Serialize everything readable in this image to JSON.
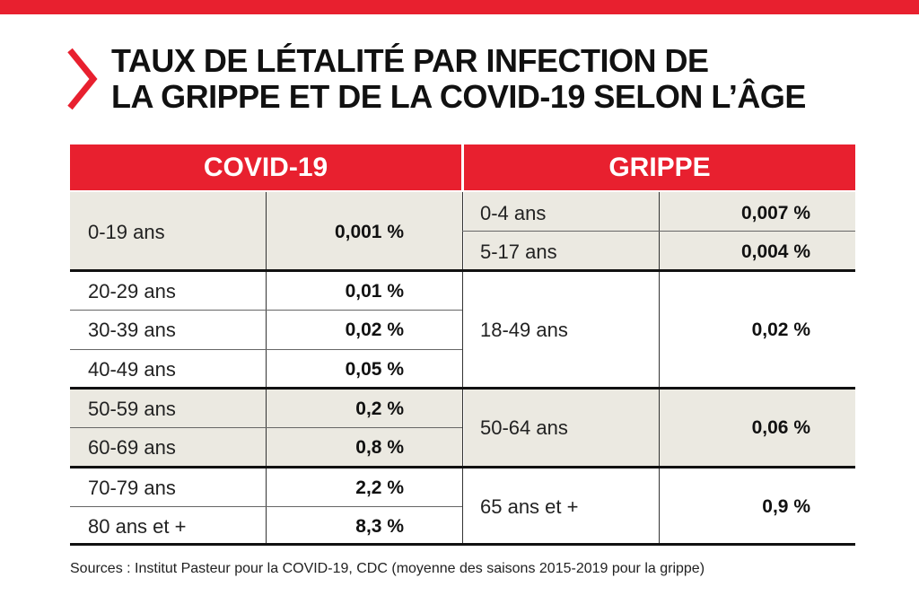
{
  "title_line1": "TAUX DE LÉTALITÉ PAR INFECTION DE",
  "title_line2": "LA GRIPPE ET DE LA COVID-19 SELON L’ÂGE",
  "covid": {
    "header": "COVID-19",
    "rows": [
      {
        "age": "0-19 ans",
        "rate": "0,001 %"
      },
      {
        "age": "20-29 ans",
        "rate": "0,01 %"
      },
      {
        "age": "30-39 ans",
        "rate": "0,02 %"
      },
      {
        "age": "40-49 ans",
        "rate": "0,05 %"
      },
      {
        "age": "50-59 ans",
        "rate": "0,2 %"
      },
      {
        "age": "60-69 ans",
        "rate": "0,8 %"
      },
      {
        "age": "70-79 ans",
        "rate": "2,2 %"
      },
      {
        "age": "80 ans et +",
        "rate": "8,3 %"
      }
    ]
  },
  "grippe": {
    "header": "GRIPPE",
    "rows": [
      {
        "age": "0-4 ans",
        "rate": "0,007 %"
      },
      {
        "age": "5-17 ans",
        "rate": "0,004 %"
      },
      {
        "age": "18-49 ans",
        "rate": "0,02 %"
      },
      {
        "age": "50-64 ans",
        "rate": "0,06 %"
      },
      {
        "age": "65 ans et +",
        "rate": "0,9 %"
      }
    ]
  },
  "sources": "Sources : Institut Pasteur pour la COVID-19, CDC (moyenne des saisons 2015-2019 pour la grippe)",
  "colors": {
    "accent": "#e8202f",
    "shade": "#ebe9e1"
  }
}
